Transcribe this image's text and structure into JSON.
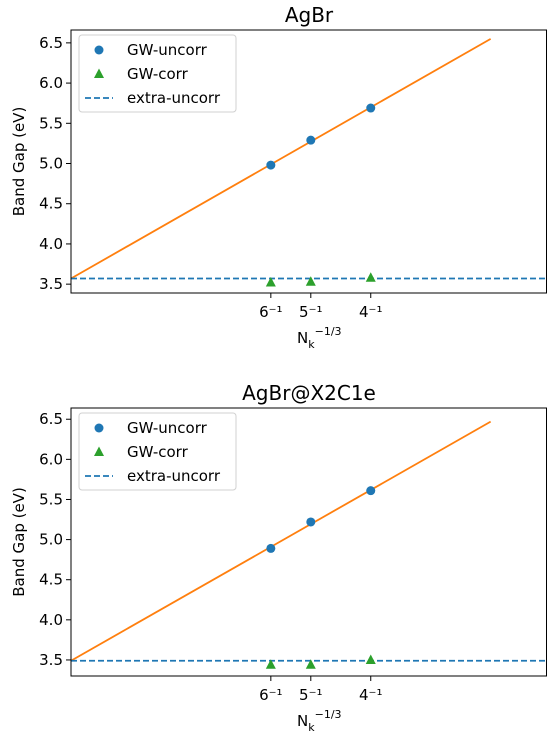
{
  "chart_data": [
    {
      "type": "scatter",
      "title": "AgBr",
      "ylabel": "Band Gap (eV)",
      "xlabel": {
        "base": "N",
        "sub": "k",
        "sup": "−1/3"
      },
      "xlim": [
        0,
        0.397
      ],
      "ylim": [
        3.39,
        6.66
      ],
      "xticks": [
        {
          "value": 0.16667,
          "label": "6⁻¹"
        },
        {
          "value": 0.2,
          "label": "5⁻¹"
        },
        {
          "value": 0.25,
          "label": "4⁻¹"
        }
      ],
      "yticks": [
        {
          "value": 3.5,
          "label": "3.5"
        },
        {
          "value": 4.0,
          "label": "4.0"
        },
        {
          "value": 4.5,
          "label": "4.5"
        },
        {
          "value": 5.0,
          "label": "5.0"
        },
        {
          "value": 5.5,
          "label": "5.5"
        },
        {
          "value": 6.0,
          "label": "6.0"
        },
        {
          "value": 6.5,
          "label": "6.5"
        }
      ],
      "x": [
        0.16667,
        0.2,
        0.25
      ],
      "series": [
        {
          "name": "GW-uncorr",
          "color": "#1f77b4",
          "marker": "circle",
          "values": [
            4.98,
            5.29,
            5.69
          ]
        },
        {
          "name": "GW-corr",
          "color": "#2ca02c",
          "marker": "triangle",
          "values": [
            3.52,
            3.53,
            3.58
          ]
        }
      ],
      "hline": {
        "name": "extra-uncorr",
        "color": "#1f77b4",
        "value": 3.57
      },
      "fit_line": {
        "color": "#ff7f0e",
        "x": [
          0,
          0.35
        ],
        "values": [
          3.57,
          6.55
        ]
      },
      "legend": "upper left"
    },
    {
      "type": "scatter",
      "title": "AgBr@X2C1e",
      "ylabel": "Band Gap (eV)",
      "xlabel": {
        "base": "N",
        "sub": "k",
        "sup": "−1/3"
      },
      "xlim": [
        0,
        0.397
      ],
      "ylim": [
        3.3,
        6.64
      ],
      "xticks": [
        {
          "value": 0.16667,
          "label": "6⁻¹"
        },
        {
          "value": 0.2,
          "label": "5⁻¹"
        },
        {
          "value": 0.25,
          "label": "4⁻¹"
        }
      ],
      "yticks": [
        {
          "value": 3.5,
          "label": "3.5"
        },
        {
          "value": 4.0,
          "label": "4.0"
        },
        {
          "value": 4.5,
          "label": "4.5"
        },
        {
          "value": 5.0,
          "label": "5.0"
        },
        {
          "value": 5.5,
          "label": "5.5"
        },
        {
          "value": 6.0,
          "label": "6.0"
        },
        {
          "value": 6.5,
          "label": "6.5"
        }
      ],
      "x": [
        0.16667,
        0.2,
        0.25
      ],
      "series": [
        {
          "name": "GW-uncorr",
          "color": "#1f77b4",
          "marker": "circle",
          "values": [
            4.89,
            5.22,
            5.61
          ]
        },
        {
          "name": "GW-corr",
          "color": "#2ca02c",
          "marker": "triangle",
          "values": [
            3.44,
            3.44,
            3.5
          ]
        }
      ],
      "hline": {
        "name": "extra-uncorr",
        "color": "#1f77b4",
        "value": 3.49
      },
      "fit_line": {
        "color": "#ff7f0e",
        "x": [
          0,
          0.35
        ],
        "values": [
          3.49,
          6.47
        ]
      },
      "legend": "upper left"
    }
  ]
}
